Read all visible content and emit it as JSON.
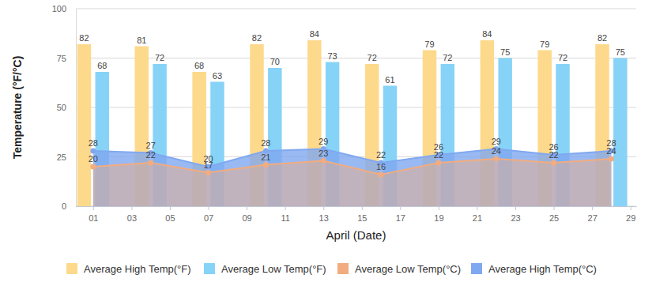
{
  "chart_data": {
    "type": "bar",
    "x_label": "April (Date)",
    "y_label": "Temperature (°F/°C)",
    "x": [
      1,
      4,
      7,
      10,
      13,
      16,
      19,
      22,
      25,
      28
    ],
    "xlim": [
      0.1,
      29.3
    ],
    "xticks": [
      {
        "value": 1,
        "label": "01"
      },
      {
        "value": 3,
        "label": "03"
      },
      {
        "value": 5,
        "label": "05"
      },
      {
        "value": 7,
        "label": "07"
      },
      {
        "value": 9,
        "label": "09"
      },
      {
        "value": 11,
        "label": "11"
      },
      {
        "value": 13,
        "label": "13"
      },
      {
        "value": 15,
        "label": "15"
      },
      {
        "value": 17,
        "label": "17"
      },
      {
        "value": 19,
        "label": "19"
      },
      {
        "value": 21,
        "label": "21"
      },
      {
        "value": 23,
        "label": "23"
      },
      {
        "value": 25,
        "label": "25"
      },
      {
        "value": 27,
        "label": "27"
      },
      {
        "value": 29,
        "label": "29"
      }
    ],
    "ylim": [
      0,
      100
    ],
    "yticks": [
      0,
      25,
      50,
      75,
      100
    ],
    "grid": true,
    "legend": "bottom",
    "data_labels": true,
    "series": [
      {
        "name": "Average High Temp(°F)",
        "type": "bar",
        "color": "#fdd98b",
        "values": [
          82,
          81,
          68,
          82,
          84,
          72,
          79,
          84,
          79,
          82
        ]
      },
      {
        "name": "Average Low Temp(°F)",
        "type": "bar",
        "color": "#87d3f8",
        "values": [
          68,
          72,
          63,
          70,
          73,
          61,
          72,
          75,
          72,
          75
        ]
      },
      {
        "name": "Average Low Temp(°C)",
        "type": "area",
        "color": "#f2ac7f",
        "marker": "circle",
        "values": [
          20,
          22,
          17,
          21,
          23,
          16,
          22,
          24,
          22,
          24
        ]
      },
      {
        "name": "Average High Temp(°C)",
        "type": "area",
        "color": "#80a8f0",
        "marker": "circle",
        "values": [
          28,
          27,
          20,
          28,
          29,
          22,
          26,
          29,
          26,
          28
        ]
      }
    ]
  }
}
